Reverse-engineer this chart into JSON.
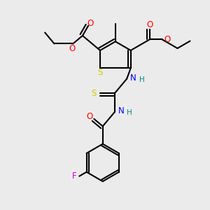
{
  "bg_color": "#ebebeb",
  "atom_colors": {
    "O": "#ff0000",
    "N": "#0000ff",
    "S_ring": "#cccc00",
    "S_thio": "#cccc00",
    "F": "#cc00cc",
    "H": "#008888"
  },
  "bond_color": "#000000",
  "bond_width": 1.5
}
